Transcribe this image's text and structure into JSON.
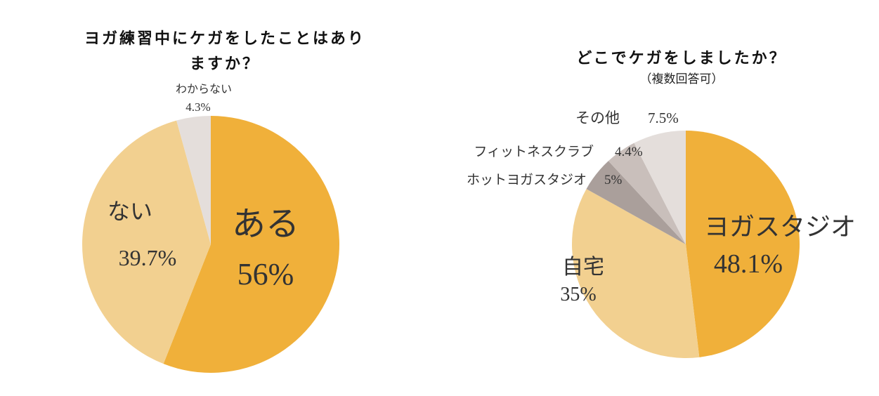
{
  "chart_data": [
    {
      "type": "pie",
      "title": "ヨガ練習中にケガをしたことはありますか？",
      "categories": [
        "ある",
        "ない",
        "わからない"
      ],
      "values": [
        56,
        39.7,
        4.3
      ],
      "value_labels": [
        "56%",
        "39.7%",
        "4.3%"
      ],
      "colors": [
        "#f0b03a",
        "#f2d090",
        "#e4dedb"
      ]
    },
    {
      "type": "pie",
      "title": "どこでケガをしましたか？",
      "subtitle": "（複数回答可）",
      "categories": [
        "ヨガスタジオ",
        "自宅",
        "ホットヨガスタジオ",
        "フィットネスクラブ",
        "その他"
      ],
      "values": [
        48.1,
        35,
        5,
        4.4,
        7.5
      ],
      "value_labels": [
        "48.1%",
        "35%",
        "5%",
        "4.4%",
        "7.5%"
      ],
      "colors": [
        "#f0b03a",
        "#f2d090",
        "#aa9f9b",
        "#c9bfbb",
        "#e4dedb"
      ]
    }
  ]
}
